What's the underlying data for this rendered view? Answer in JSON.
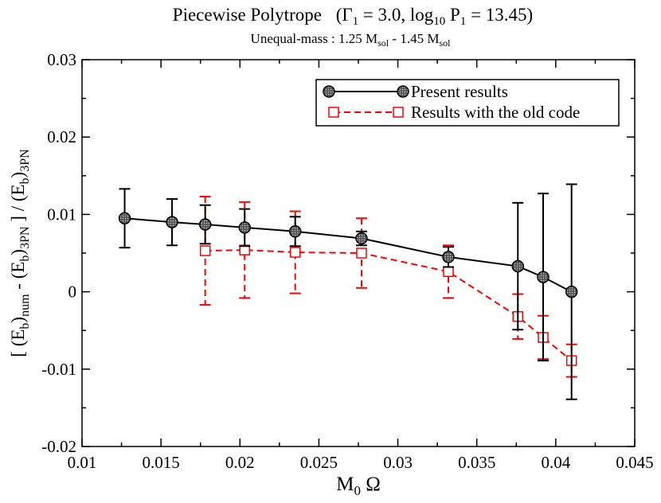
{
  "chart_data": {
    "type": "line",
    "title": {
      "main": "Piecewise Polytrope",
      "eos_open": "(",
      "gamma_symbol": "Γ",
      "gamma_sub": "1",
      "gamma_value": " = 3.0,  log",
      "log_sub": "10",
      "p_symbol": " P",
      "p_sub": "1",
      "p_value": " = 13.45)"
    },
    "subtitle": {
      "prefix": "Unequal-mass : 1.25 M",
      "sub1": "sol",
      "middle": " - 1.45 M",
      "sub2": "sol"
    },
    "xlabel": {
      "main": "M",
      "sub": "0",
      "rest": " Ω"
    },
    "ylabel": {
      "p1": "[ (E",
      "s1": "b",
      "p2": ")",
      "s2": "num",
      "p3": " - (E",
      "s3": "b",
      "p4": ")",
      "s4": "3PN",
      "p5": " ] / (E",
      "s5": "b",
      "p6": ")",
      "s6": "3PN"
    },
    "xlim": [
      0.01,
      0.045
    ],
    "ylim": [
      -0.02,
      0.03
    ],
    "x_ticks": [
      "0.01",
      "0.015",
      "0.02",
      "0.025",
      "0.03",
      "0.035",
      "0.04",
      "0.045"
    ],
    "y_ticks": [
      "-0.02",
      "-0.01",
      "0",
      "0.01",
      "0.02",
      "0.03"
    ],
    "x_tick_values": [
      0.01,
      0.015,
      0.02,
      0.025,
      0.03,
      0.035,
      0.04,
      0.045
    ],
    "y_tick_values": [
      -0.02,
      -0.01,
      0,
      0.01,
      0.02,
      0.03
    ],
    "legend_position": "top-right",
    "series": [
      {
        "name": "Present results",
        "color": "#000000",
        "line_style": "solid",
        "marker": "circle",
        "x": [
          0.0127,
          0.0157,
          0.0178,
          0.0203,
          0.0235,
          0.0277,
          0.0332,
          0.0376,
          0.0392,
          0.041
        ],
        "y": [
          0.0095,
          0.009,
          0.0087,
          0.0083,
          0.0078,
          0.0069,
          0.0045,
          0.0033,
          0.0019,
          0.0
        ],
        "yerr": [
          0.0038,
          0.003,
          0.0025,
          0.0024,
          0.0019,
          0.0009,
          0.0013,
          0.0082,
          0.0108,
          0.0139
        ]
      },
      {
        "name": "Results with the old code",
        "color": "#ff0000",
        "line_style": "dashed",
        "marker": "square",
        "x": [
          0.0178,
          0.0203,
          0.0235,
          0.0277,
          0.0332,
          0.0376,
          0.0392,
          0.041
        ],
        "y": [
          0.0053,
          0.0054,
          0.0051,
          0.005,
          0.0026,
          -0.0032,
          -0.0059,
          -0.0089
        ],
        "yerr": [
          0.007,
          0.0062,
          0.0053,
          0.0045,
          0.0034,
          0.0029,
          0.0028,
          0.0021
        ]
      }
    ]
  }
}
